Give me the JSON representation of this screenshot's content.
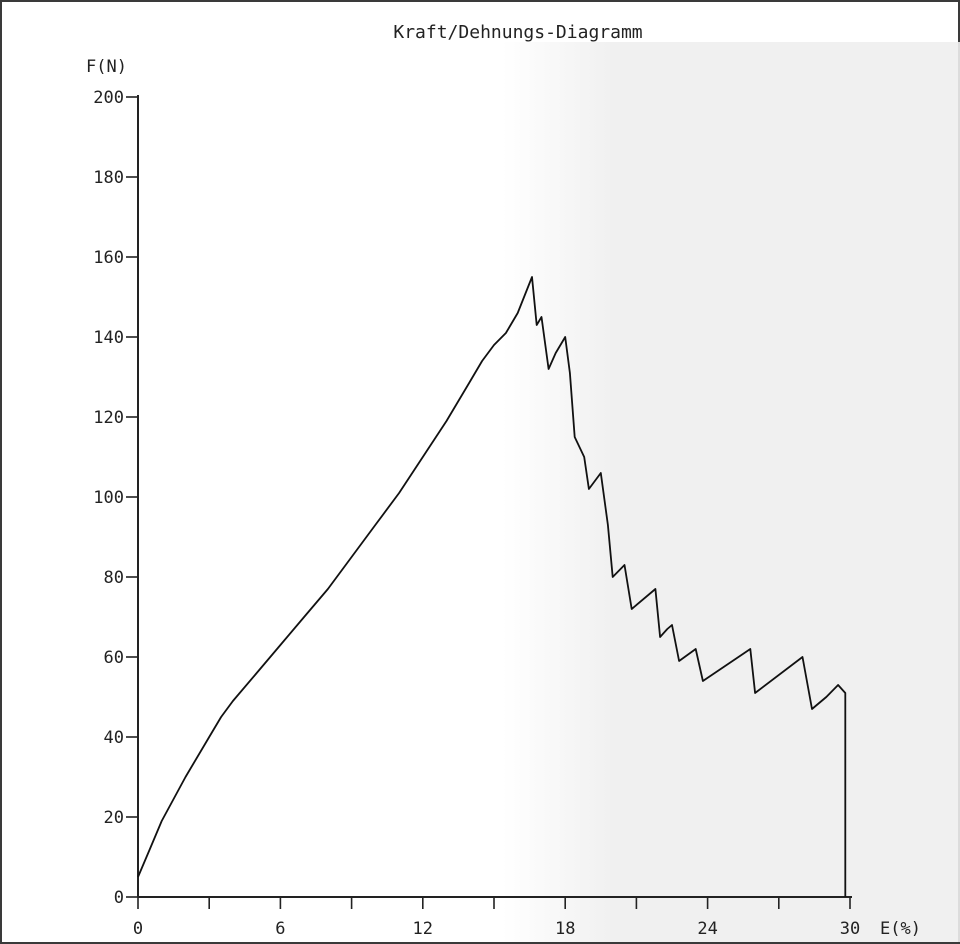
{
  "chart_data": {
    "type": "line",
    "title": "Kraft/Dehnungs-Diagramm",
    "xlabel": "E(%)",
    "ylabel": "F(N)",
    "xlim": [
      0,
      30
    ],
    "ylim": [
      0,
      200
    ],
    "x_ticks": [
      "0",
      "6",
      "12",
      "18",
      "24",
      "30"
    ],
    "y_ticks": [
      "0",
      "20",
      "40",
      "60",
      "80",
      "100",
      "120",
      "140",
      "160",
      "180",
      "200"
    ],
    "grid": false,
    "legend": "none",
    "line_color": "#111111",
    "series": [
      {
        "points": [
          [
            0,
            5
          ],
          [
            0.5,
            12
          ],
          [
            1,
            19
          ],
          [
            2,
            30
          ],
          [
            3,
            40
          ],
          [
            3.5,
            45
          ],
          [
            4,
            49
          ],
          [
            5,
            56
          ],
          [
            6,
            63
          ],
          [
            7,
            70
          ],
          [
            8,
            77
          ],
          [
            9,
            85
          ],
          [
            10,
            93
          ],
          [
            11,
            101
          ],
          [
            12,
            110
          ],
          [
            13,
            119
          ],
          [
            14,
            129
          ],
          [
            14.5,
            134
          ],
          [
            15,
            138
          ],
          [
            15.5,
            141
          ],
          [
            16,
            146
          ],
          [
            16.6,
            155
          ],
          [
            16.8,
            143
          ],
          [
            17,
            145
          ],
          [
            17.3,
            132
          ],
          [
            17.6,
            136
          ],
          [
            18,
            140
          ],
          [
            18.2,
            131
          ],
          [
            18.4,
            115
          ],
          [
            18.8,
            110
          ],
          [
            19,
            102
          ],
          [
            19.5,
            106
          ],
          [
            19.8,
            93
          ],
          [
            20,
            80
          ],
          [
            20.5,
            83
          ],
          [
            20.8,
            72
          ],
          [
            21.8,
            77
          ],
          [
            22,
            65
          ],
          [
            22.3,
            67
          ],
          [
            22.5,
            68
          ],
          [
            22.8,
            59
          ],
          [
            23.5,
            62
          ],
          [
            23.8,
            54
          ],
          [
            25.8,
            62
          ],
          [
            26,
            51
          ],
          [
            28,
            60
          ],
          [
            28.4,
            47
          ],
          [
            29,
            50
          ],
          [
            29.5,
            53
          ],
          [
            29.8,
            51
          ],
          [
            29.8,
            0
          ]
        ]
      }
    ]
  }
}
